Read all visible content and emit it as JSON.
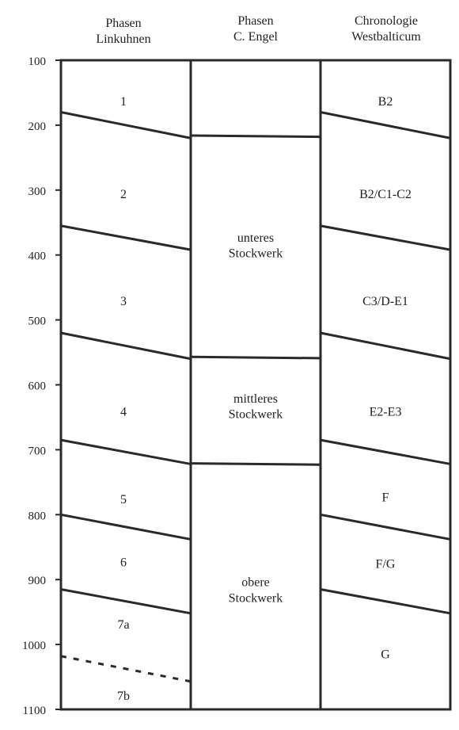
{
  "headers": {
    "col1": [
      "Phasen",
      "Linkuhnen"
    ],
    "col2": [
      "Phasen",
      "C. Engel"
    ],
    "col3": [
      "Chronologie",
      "Westbalticum"
    ]
  },
  "y_axis": {
    "min": 100,
    "max": 1100,
    "ticks": [
      "100",
      "200",
      "300",
      "400",
      "500",
      "600",
      "700",
      "800",
      "900",
      "1000",
      "1100"
    ]
  },
  "columns": [
    {
      "id": "linkuhnen",
      "boundaries": [
        {
          "left": 180,
          "right": 220
        },
        {
          "left": 355,
          "right": 392
        },
        {
          "left": 520,
          "right": 560
        },
        {
          "left": 685,
          "right": 722
        },
        {
          "left": 800,
          "right": 838
        },
        {
          "left": 915,
          "right": 952
        },
        {
          "left": 1018,
          "right": 1057,
          "style": "dashed"
        }
      ],
      "labels": [
        {
          "text": "1",
          "at": 162
        },
        {
          "text": "2",
          "at": 305
        },
        {
          "text": "3",
          "at": 470
        },
        {
          "text": "4",
          "at": 640
        },
        {
          "text": "5",
          "at": 775
        },
        {
          "text": "6",
          "at": 872
        },
        {
          "text": "7a",
          "at": 968
        },
        {
          "text": "7b",
          "at": 1078
        }
      ]
    },
    {
      "id": "engel",
      "boundaries": [
        {
          "left": 216,
          "right": 218
        },
        {
          "left": 557,
          "right": 559
        },
        {
          "left": 721,
          "right": 723
        }
      ],
      "labels": [
        {
          "text": "unteres",
          "at": 372
        },
        {
          "text": "Stockwerk",
          "at": 396
        },
        {
          "text": "mittleres",
          "at": 620
        },
        {
          "text": "Stockwerk",
          "at": 644
        },
        {
          "text": "obere",
          "at": 903
        },
        {
          "text": "Stockwerk",
          "at": 927
        }
      ]
    },
    {
      "id": "westbalticum",
      "boundaries": [
        {
          "left": 180,
          "right": 220
        },
        {
          "left": 355,
          "right": 392
        },
        {
          "left": 520,
          "right": 560
        },
        {
          "left": 685,
          "right": 722
        },
        {
          "left": 800,
          "right": 838
        },
        {
          "left": 915,
          "right": 952
        }
      ],
      "labels": [
        {
          "text": "B2",
          "at": 162
        },
        {
          "text": "B2/C1-C2",
          "at": 305
        },
        {
          "text": "C3/D-E1",
          "at": 470
        },
        {
          "text": "E2-E3",
          "at": 640
        },
        {
          "text": "F",
          "at": 772
        },
        {
          "text": "F/G",
          "at": 875
        },
        {
          "text": "G",
          "at": 1014
        }
      ]
    }
  ]
}
